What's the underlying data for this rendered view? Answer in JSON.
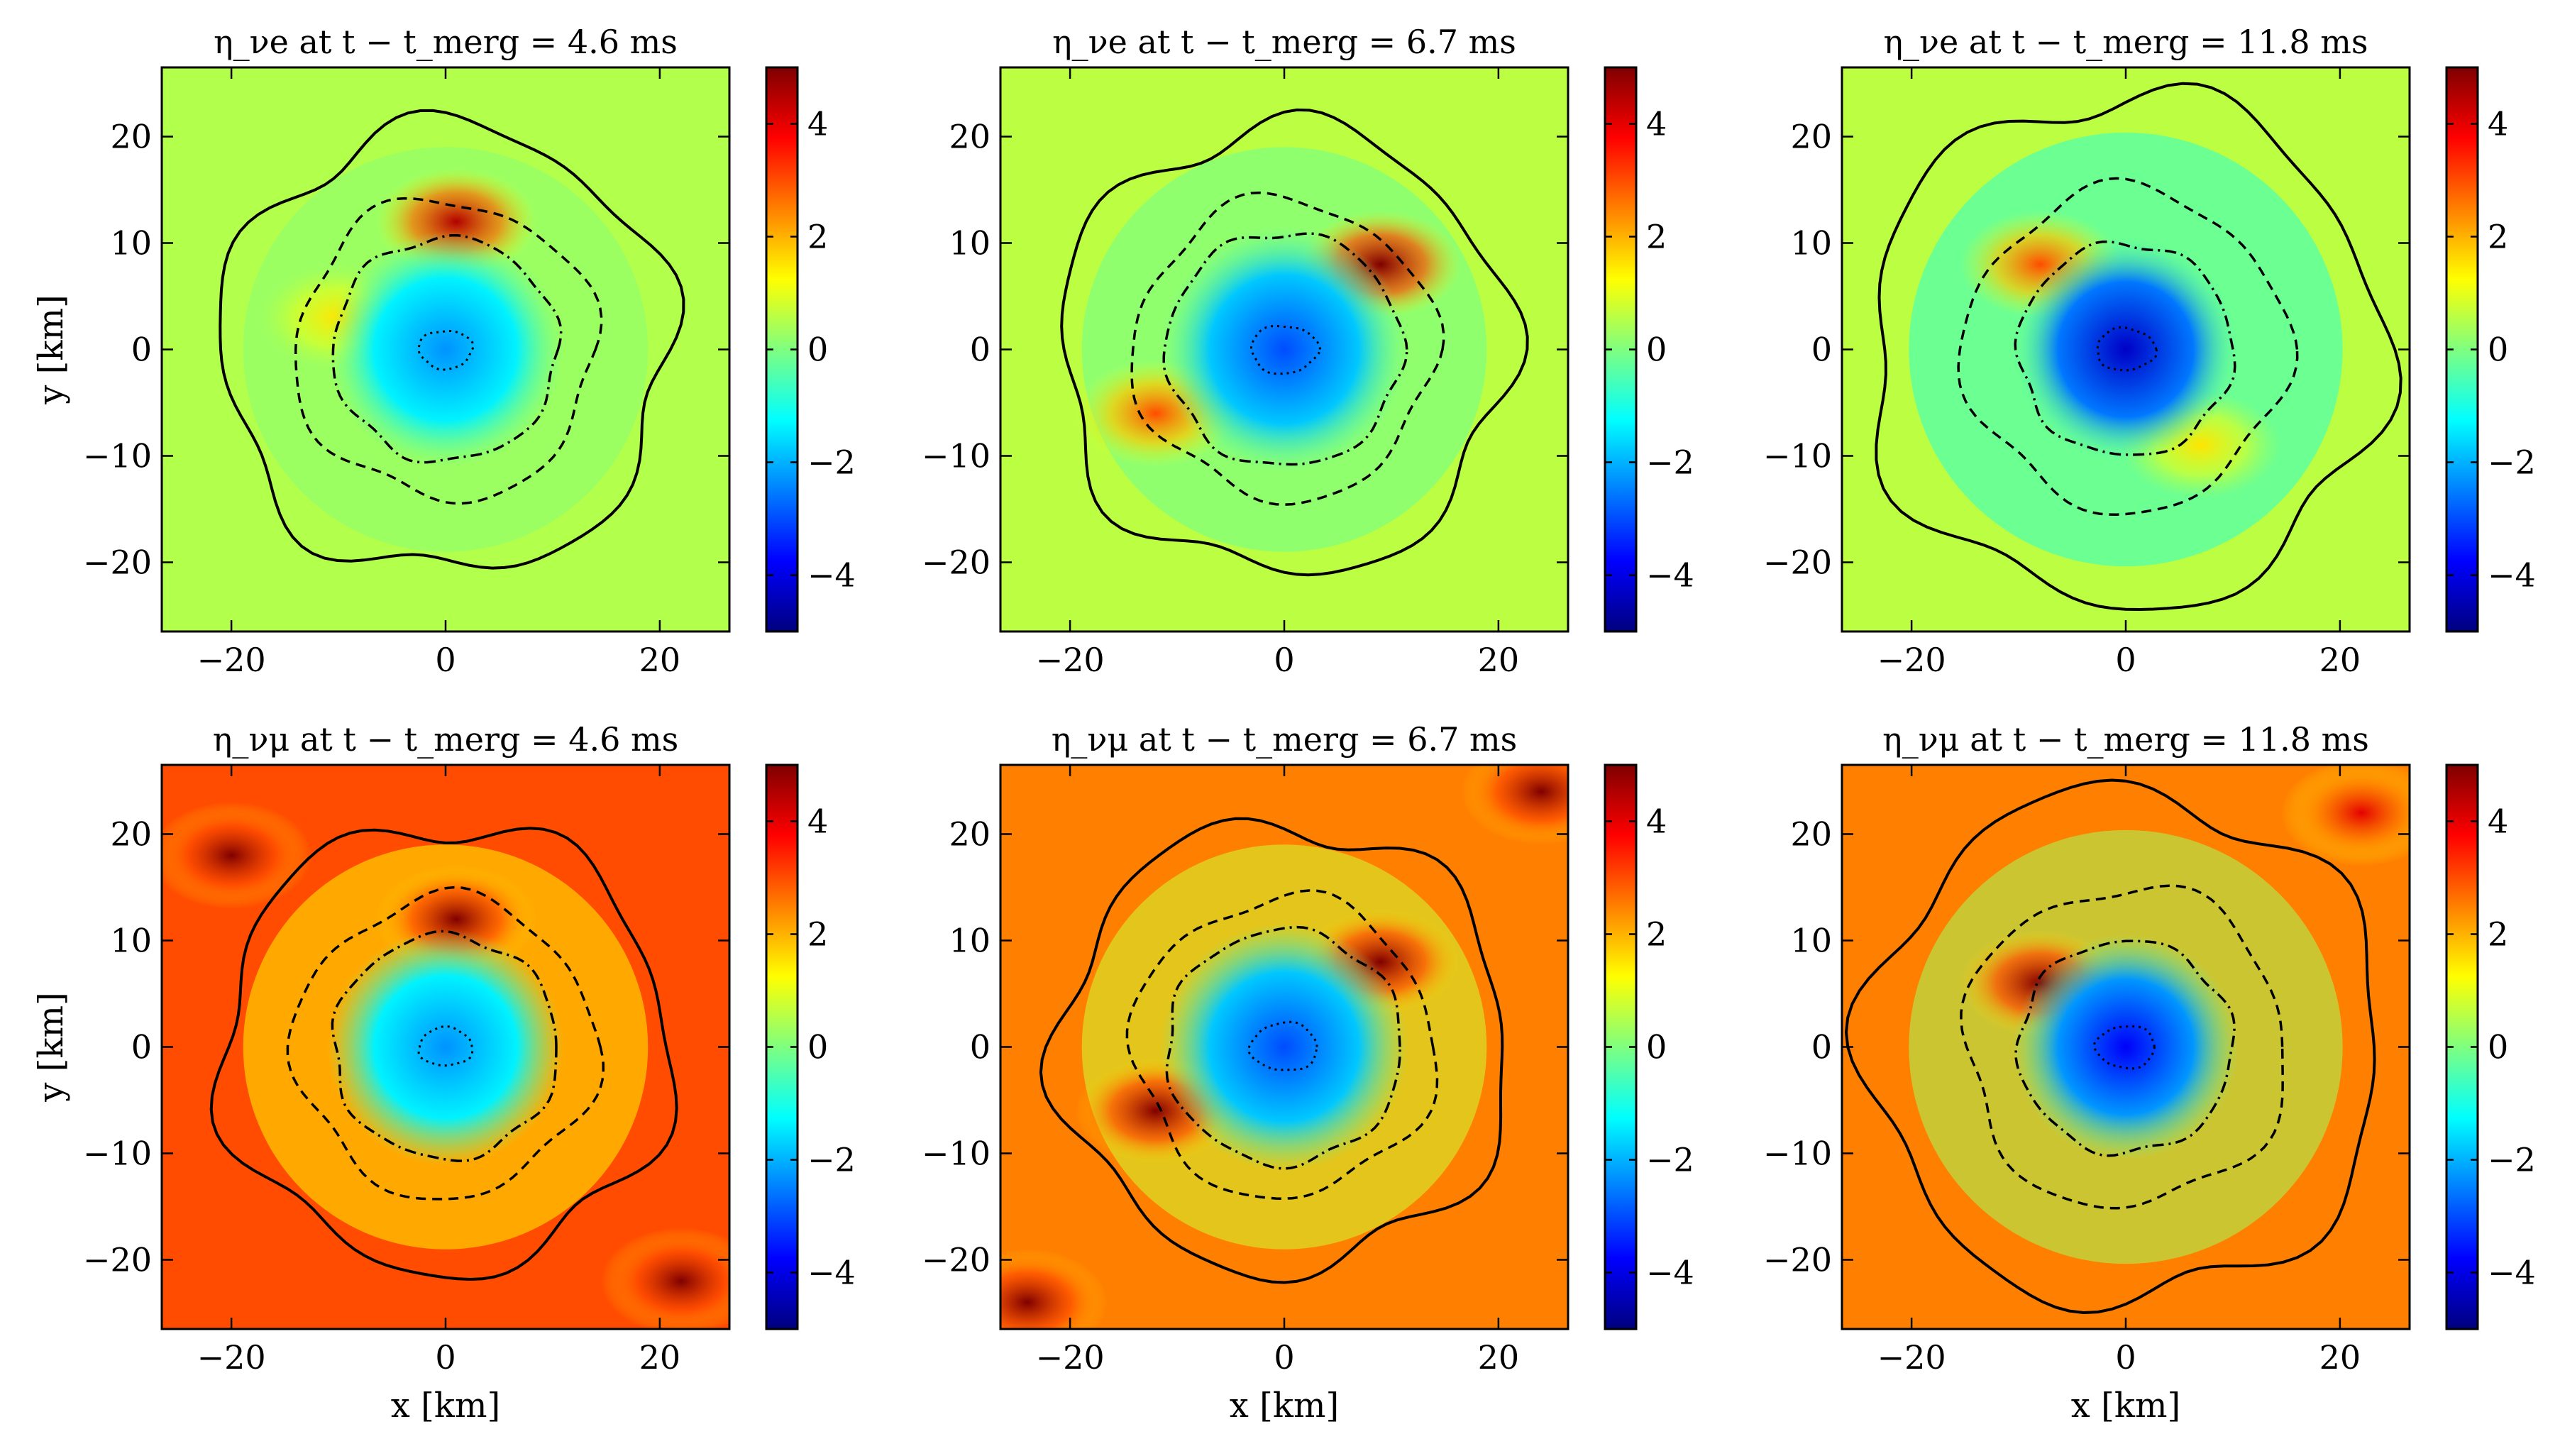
{
  "figure": {
    "grid": "2x3",
    "colormap": [
      "#00007f",
      "#0000ff",
      "#007fff",
      "#00ffff",
      "#7fff7f",
      "#ffff00",
      "#ff7f00",
      "#ff0000",
      "#7f0000"
    ],
    "x_label": "x [km]",
    "y_label": "y [km]"
  },
  "chart_data": [
    {
      "type": "heatmap",
      "title": "η_νe at t − t_merg = 4.6 ms",
      "quantity": "η_νe",
      "xlabel": "",
      "ylabel": "y [km]",
      "xlim": [
        -26.5,
        26.5
      ],
      "ylim": [
        -26.5,
        26.5
      ],
      "xticks": [
        -20,
        0,
        20
      ],
      "yticks": [
        -20,
        -10,
        0,
        10,
        20
      ],
      "colorbar": {
        "range": [
          -5,
          5
        ],
        "ticks": [
          -4,
          -2,
          0,
          2,
          4
        ]
      },
      "background_value": 0.5,
      "core_value": -2.3,
      "hot_regions": [
        {
          "label": "north arc",
          "center": [
            1,
            12
          ],
          "value": 4.5
        },
        {
          "label": "west lobe",
          "center": [
            -10,
            3
          ],
          "value": 1.5
        }
      ],
      "contours": {
        "solid_radius_km": 21,
        "dashed_radius_km": 14,
        "dashdot_radius_km": 10.5,
        "dotted_radius_km": 2
      }
    },
    {
      "type": "heatmap",
      "title": "η_νe at t − t_merg = 6.7 ms",
      "quantity": "η_νe",
      "xlabel": "",
      "ylabel": "",
      "xlim": [
        -26.5,
        26.5
      ],
      "ylim": [
        -26.5,
        26.5
      ],
      "xticks": [
        -20,
        0,
        20
      ],
      "yticks": [
        -20,
        -10,
        0,
        10,
        20
      ],
      "colorbar": {
        "range": [
          -5,
          5
        ],
        "ticks": [
          -4,
          -2,
          0,
          2,
          4
        ]
      },
      "background_value": 0.6,
      "core_value": -3,
      "hot_regions": [
        {
          "label": "NE lobe",
          "center": [
            9,
            8
          ],
          "value": 5
        },
        {
          "label": "SW lobe",
          "center": [
            -12,
            -6
          ],
          "value": 3
        }
      ],
      "contours": {
        "solid_radius_km": 21,
        "dashed_radius_km": 14,
        "dashdot_radius_km": 11,
        "dotted_radius_km": 2.5
      }
    },
    {
      "type": "heatmap",
      "title": "η_νe at t − t_merg = 11.8 ms",
      "quantity": "η_νe",
      "xlabel": "",
      "ylabel": "",
      "xlim": [
        -26.5,
        26.5
      ],
      "ylim": [
        -26.5,
        26.5
      ],
      "xticks": [
        -20,
        0,
        20
      ],
      "yticks": [
        -20,
        -10,
        0,
        10,
        20
      ],
      "colorbar": {
        "range": [
          -5,
          5
        ],
        "ticks": [
          -4,
          -2,
          0,
          2,
          4
        ]
      },
      "background_value": 0.6,
      "core_value": -4.3,
      "hot_regions": [
        {
          "label": "NW arc",
          "center": [
            -8,
            8
          ],
          "value": 3
        },
        {
          "label": "SE arc",
          "center": [
            7,
            -9
          ],
          "value": 1.5
        }
      ],
      "contours": {
        "solid_radius_km": 24,
        "dashed_radius_km": 15,
        "dashdot_radius_km": 10,
        "dotted_radius_km": 2.2
      }
    },
    {
      "type": "heatmap",
      "title": "η_νμ at t − t_merg = 4.6 ms",
      "quantity": "η_νμ",
      "xlabel": "x [km]",
      "ylabel": "y [km]",
      "xlim": [
        -26.5,
        26.5
      ],
      "ylim": [
        -26.5,
        26.5
      ],
      "xticks": [
        -20,
        0,
        20
      ],
      "yticks": [
        -20,
        -10,
        0,
        10,
        20
      ],
      "colorbar": {
        "range": [
          -5,
          5
        ],
        "ticks": [
          -4,
          -2,
          0,
          2,
          4
        ]
      },
      "background_value": 3,
      "core_value": -2.3,
      "hot_regions": [
        {
          "label": "outer NW",
          "center": [
            -20,
            18
          ],
          "value": 5
        },
        {
          "label": "outer SE",
          "center": [
            22,
            -22
          ],
          "value": 5
        },
        {
          "label": "north arc",
          "center": [
            1,
            12
          ],
          "value": 5
        }
      ],
      "contours": {
        "solid_radius_km": 21,
        "dashed_radius_km": 14,
        "dashdot_radius_km": 10.5,
        "dotted_radius_km": 2
      }
    },
    {
      "type": "heatmap",
      "title": "η_νμ at t − t_merg = 6.7 ms",
      "quantity": "η_νμ",
      "xlabel": "x [km]",
      "ylabel": "",
      "xlim": [
        -26.5,
        26.5
      ],
      "ylim": [
        -26.5,
        26.5
      ],
      "xticks": [
        -20,
        0,
        20
      ],
      "yticks": [
        -20,
        -10,
        0,
        10,
        20
      ],
      "colorbar": {
        "range": [
          -5,
          5
        ],
        "ticks": [
          -4,
          -2,
          0,
          2,
          4
        ]
      },
      "background_value": 2.5,
      "core_value": -3,
      "hot_regions": [
        {
          "label": "NE lobe",
          "center": [
            9,
            8
          ],
          "value": 5
        },
        {
          "label": "SW lobe",
          "center": [
            -12,
            -6
          ],
          "value": 5
        },
        {
          "label": "corner NE",
          "center": [
            24,
            24
          ],
          "value": 5
        },
        {
          "label": "corner SW",
          "center": [
            -24,
            -24
          ],
          "value": 5
        }
      ],
      "contours": {
        "solid_radius_km": 21,
        "dashed_radius_km": 14,
        "dashdot_radius_km": 11,
        "dotted_radius_km": 2.5
      }
    },
    {
      "type": "heatmap",
      "title": "η_νμ at t − t_merg = 11.8 ms",
      "quantity": "η_νμ",
      "xlabel": "x [km]",
      "ylabel": "",
      "xlim": [
        -26.5,
        26.5
      ],
      "ylim": [
        -26.5,
        26.5
      ],
      "xticks": [
        -20,
        0,
        20
      ],
      "yticks": [
        -20,
        -10,
        0,
        10,
        20
      ],
      "colorbar": {
        "range": [
          -5,
          5
        ],
        "ticks": [
          -4,
          -2,
          0,
          2,
          4
        ]
      },
      "background_value": 2.5,
      "core_value": -3.8,
      "hot_regions": [
        {
          "label": "NW arc",
          "center": [
            -8,
            6
          ],
          "value": 5
        },
        {
          "label": "outer ring",
          "center": [
            22,
            22
          ],
          "value": 4
        }
      ],
      "contours": {
        "solid_radius_km": 24,
        "dashed_radius_km": 15,
        "dashdot_radius_km": 10,
        "dotted_radius_km": 2.2
      }
    }
  ]
}
